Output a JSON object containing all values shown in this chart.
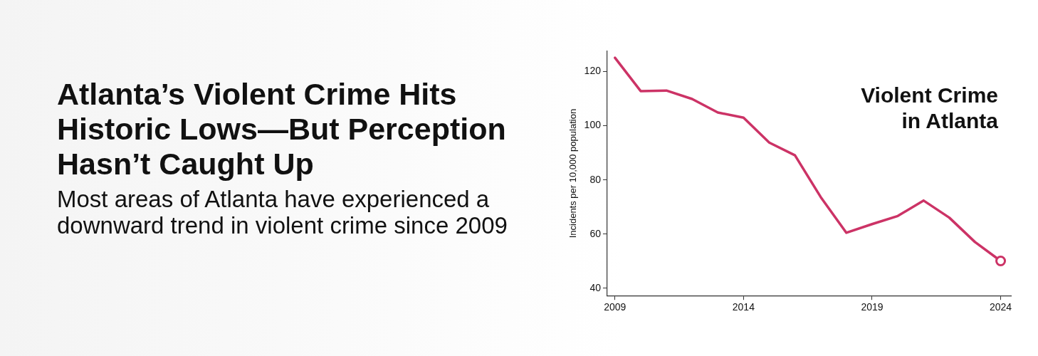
{
  "chart_data": {
    "type": "line",
    "title": "Atlanta’s Violent Crime Hits Historic Lows—But Perception Hasn’t Caught Up",
    "subtitle": "Most areas of Atlanta have experienced a downward trend in violent crime since 2009",
    "ylabel": "Incidents per 10,000 population",
    "annotations": [
      "Violent Crime in Atlanta"
    ],
    "x": [
      2009,
      2010,
      2011,
      2012,
      2013,
      2014,
      2015,
      2016,
      2017,
      2018,
      2019,
      2020,
      2021,
      2022,
      2023,
      2024
    ],
    "series": [
      {
        "color": "#cc3366",
        "values": [
          125.1,
          112.8,
          113.0,
          109.9,
          104.9,
          103.0,
          93.8,
          89.1,
          73.7,
          60.5,
          63.7,
          66.7,
          72.4,
          66.1,
          57.1,
          50.1
        ]
      }
    ],
    "xlim": [
      2008.7,
      2024.4
    ],
    "xticks": [
      2009,
      2014,
      2019,
      2024
    ],
    "ylim": [
      37.3,
      127.5
    ],
    "yticks": [
      40,
      60,
      80,
      100,
      120
    ],
    "grid": false,
    "legend": false,
    "marker": "none",
    "line_style": "solid"
  }
}
